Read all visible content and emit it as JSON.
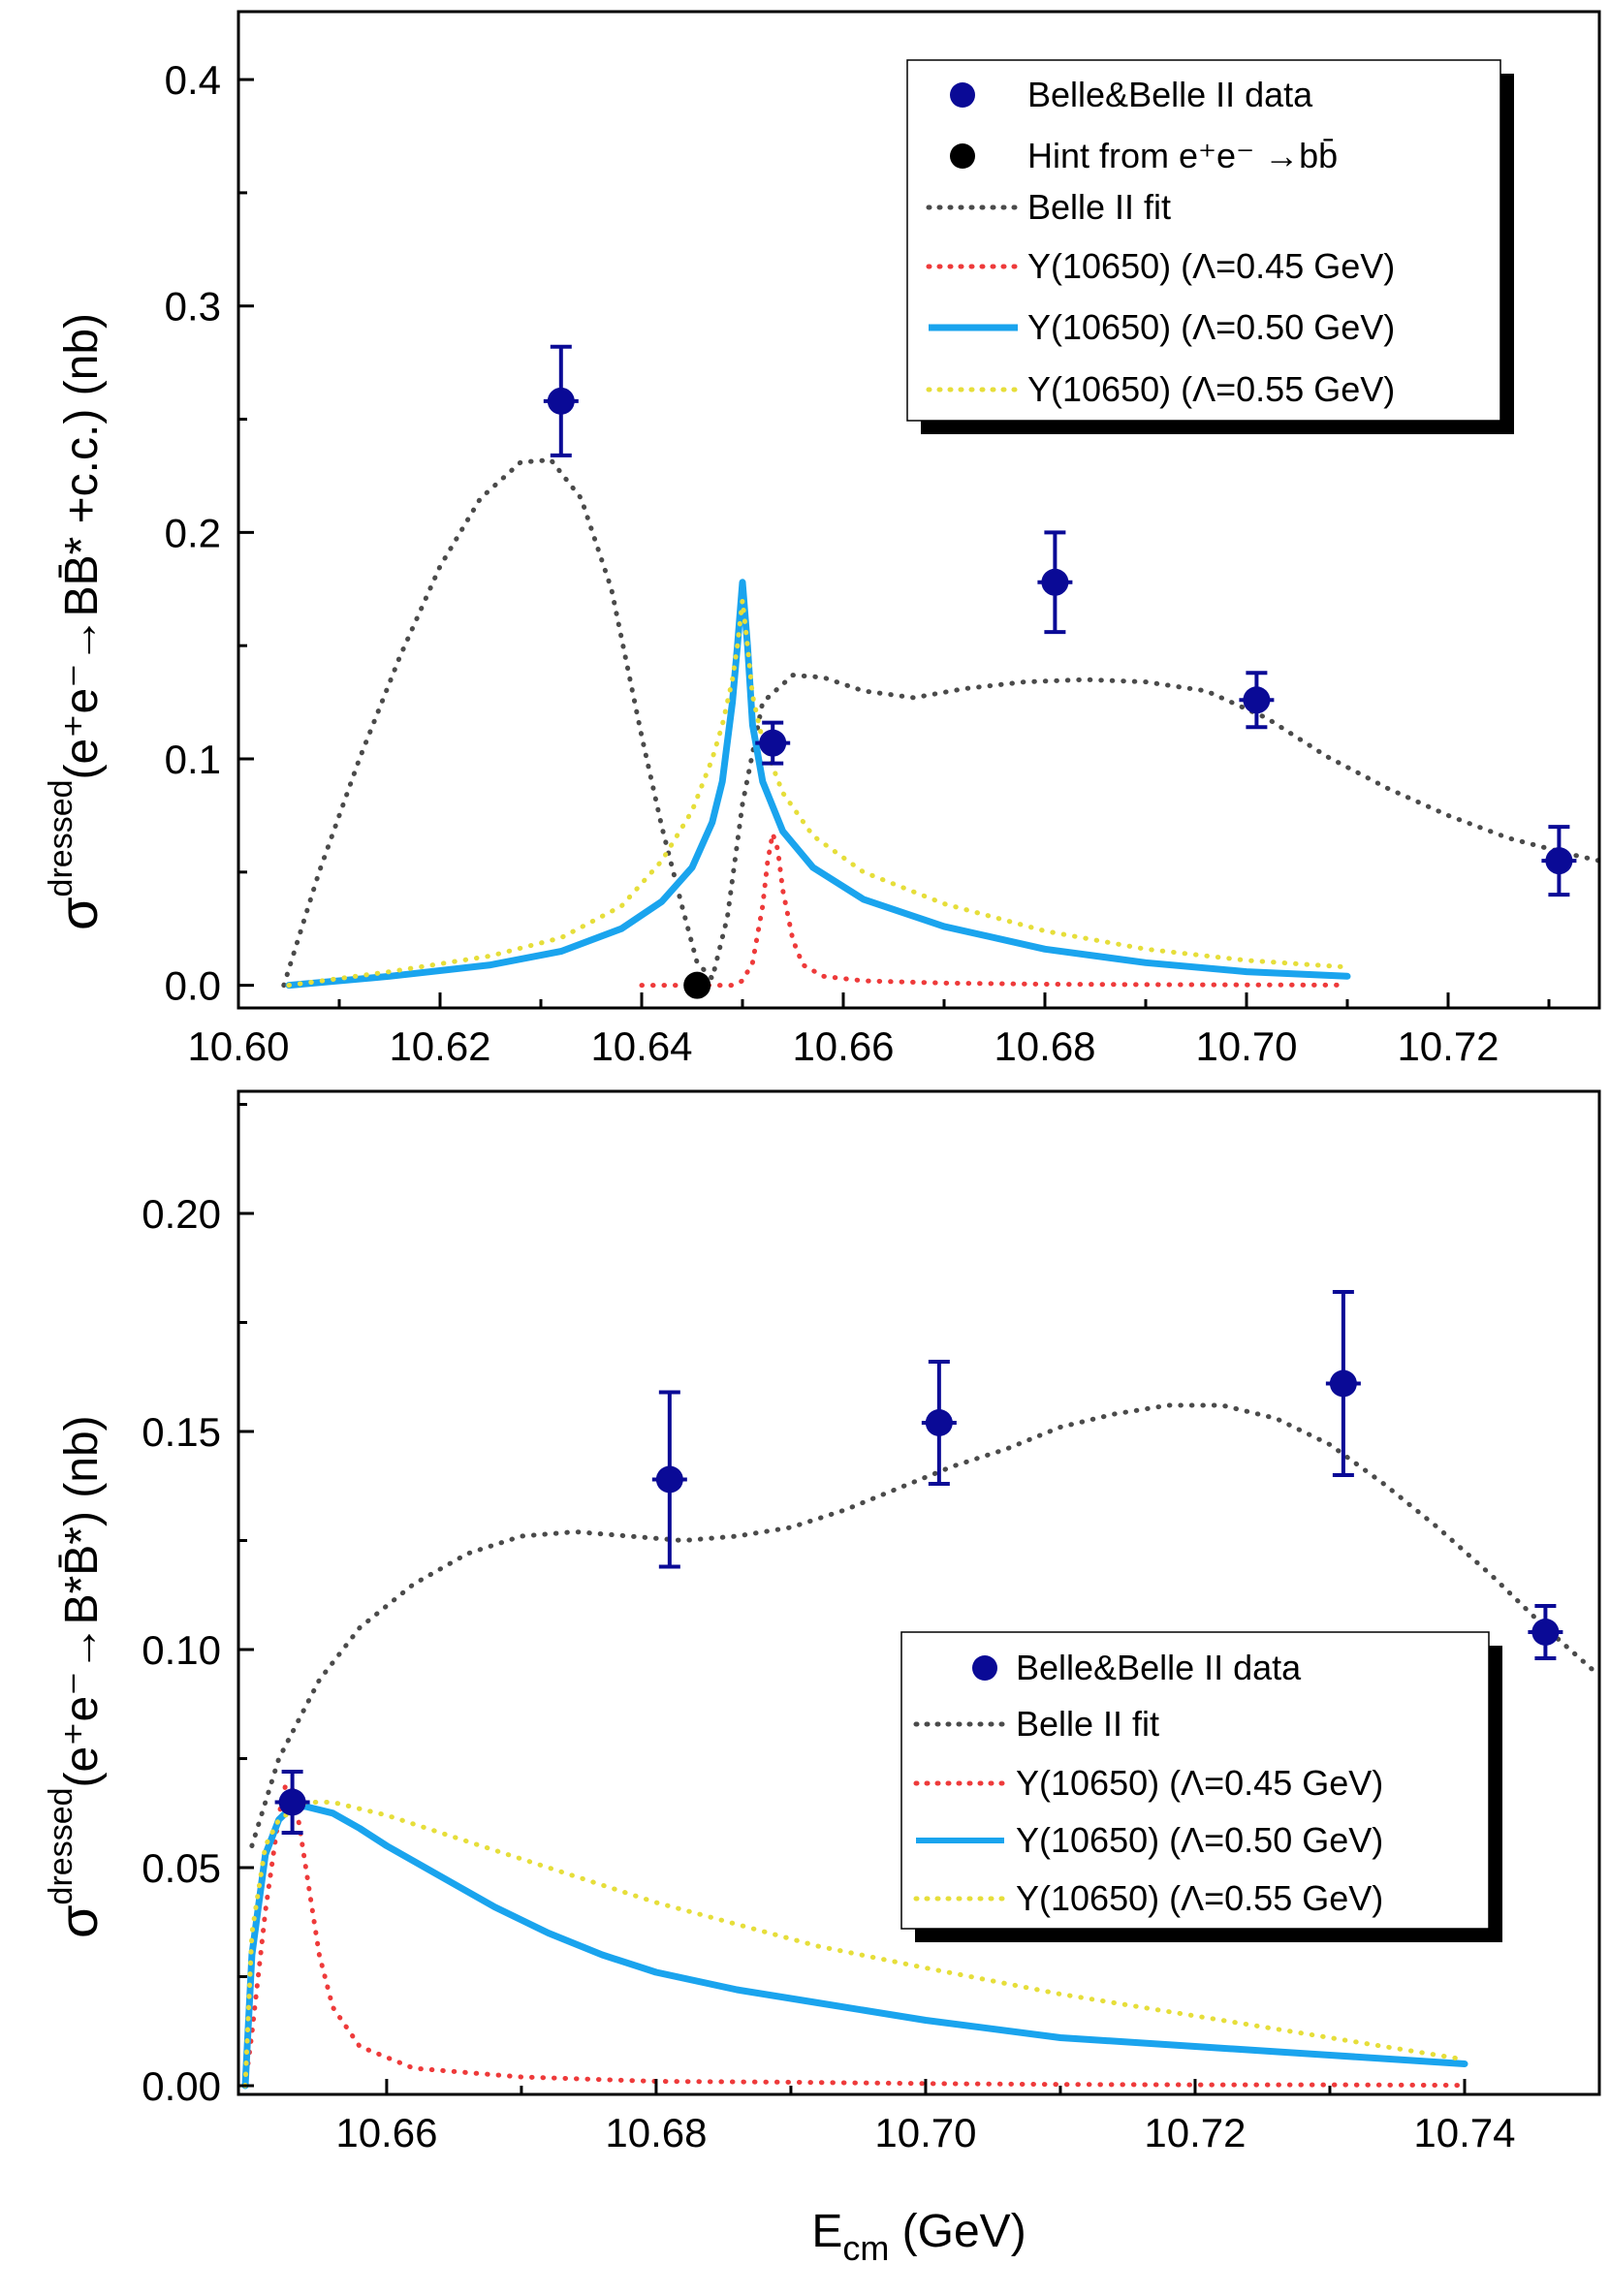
{
  "chart_data": [
    {
      "type": "line",
      "panel": "top",
      "title": "",
      "xlabel": "",
      "ylabel_parts": {
        "sigma": "σ",
        "sup": "dressed",
        "main": "(e⁺e⁻→BB̄* +c.c.) (nb)"
      },
      "xlim": [
        10.6,
        10.735
      ],
      "ylim": [
        -0.01,
        0.43
      ],
      "x_ticks": [
        {
          "value": 10.6,
          "label": "10.60"
        },
        {
          "value": 10.62,
          "label": "10.62"
        },
        {
          "value": 10.64,
          "label": "10.64"
        },
        {
          "value": 10.66,
          "label": "10.66"
        },
        {
          "value": 10.68,
          "label": "10.68"
        },
        {
          "value": 10.7,
          "label": "10.70"
        },
        {
          "value": 10.72,
          "label": "10.72"
        }
      ],
      "y_ticks": [
        {
          "value": 0.0,
          "label": "0.0"
        },
        {
          "value": 0.1,
          "label": "0.1"
        },
        {
          "value": 0.2,
          "label": "0.2"
        },
        {
          "value": 0.3,
          "label": "0.3"
        },
        {
          "value": 0.4,
          "label": "0.4"
        }
      ],
      "legend_position": "top-right",
      "series": [
        {
          "name": "Belle&Belle II data",
          "kind": "points",
          "color": "#0a0a96",
          "x": [
            10.632,
            10.653,
            10.681,
            10.701,
            10.731
          ],
          "y": [
            0.258,
            0.107,
            0.178,
            0.126,
            0.055
          ],
          "yerr": [
            0.024,
            0.009,
            0.022,
            0.012,
            0.015
          ]
        },
        {
          "name": "Hint from e⁺e⁻ →bb̄",
          "kind": "points",
          "color": "#000000",
          "x": [
            10.6455
          ],
          "y": [
            0.0
          ]
        },
        {
          "name": "Belle II fit",
          "kind": "dotted",
          "color": "#4a4a4a",
          "x": [
            10.6045,
            10.608,
            10.612,
            10.616,
            10.62,
            10.624,
            10.628,
            10.631,
            10.634,
            10.637,
            10.64,
            10.642,
            10.644,
            10.6455,
            10.647,
            10.6485,
            10.65,
            10.652,
            10.655,
            10.658,
            10.662,
            10.667,
            10.672,
            10.678,
            10.684,
            10.69,
            10.696,
            10.702,
            10.708,
            10.714,
            10.72,
            10.726,
            10.732,
            10.735
          ],
          "y": [
            0.0,
            0.05,
            0.1,
            0.145,
            0.185,
            0.215,
            0.231,
            0.232,
            0.215,
            0.175,
            0.11,
            0.07,
            0.035,
            0.01,
            0.003,
            0.03,
            0.08,
            0.125,
            0.137,
            0.136,
            0.13,
            0.127,
            0.131,
            0.134,
            0.135,
            0.134,
            0.13,
            0.118,
            0.101,
            0.087,
            0.075,
            0.065,
            0.058,
            0.055
          ]
        },
        {
          "name": "Y(10650) (Λ=0.45 GeV)",
          "kind": "dotted",
          "color": "#ee3a3a",
          "x": [
            10.64,
            10.645,
            10.649,
            10.65,
            10.651,
            10.652,
            10.6525,
            10.653,
            10.6535,
            10.654,
            10.655,
            10.656,
            10.658,
            10.662,
            10.67,
            10.68,
            10.69,
            10.7,
            10.71
          ],
          "y": [
            0.0,
            0.0,
            0.0,
            0.002,
            0.01,
            0.035,
            0.055,
            0.067,
            0.06,
            0.042,
            0.02,
            0.009,
            0.004,
            0.002,
            0.001,
            0.0005,
            0.0003,
            0.0002,
            0.0001
          ]
        },
        {
          "name": "Y(10650) (Λ=0.50 GeV)",
          "kind": "solid",
          "color": "#1aa4ee",
          "x": [
            10.605,
            10.615,
            10.625,
            10.632,
            10.638,
            10.642,
            10.645,
            10.647,
            10.648,
            10.649,
            10.6495,
            10.65,
            10.6505,
            10.651,
            10.652,
            10.654,
            10.657,
            10.662,
            10.67,
            10.68,
            10.69,
            10.7,
            10.71
          ],
          "y": [
            0.0,
            0.004,
            0.009,
            0.015,
            0.025,
            0.037,
            0.052,
            0.072,
            0.09,
            0.125,
            0.15,
            0.178,
            0.15,
            0.115,
            0.09,
            0.068,
            0.052,
            0.038,
            0.026,
            0.016,
            0.01,
            0.006,
            0.004
          ]
        },
        {
          "name": "Y(10650) (Λ=0.55 GeV)",
          "kind": "dotted",
          "color": "#e6de3a",
          "x": [
            10.605,
            10.615,
            10.625,
            10.632,
            10.638,
            10.642,
            10.645,
            10.647,
            10.648,
            10.649,
            10.6495,
            10.65,
            10.6505,
            10.651,
            10.652,
            10.654,
            10.657,
            10.662,
            10.67,
            10.68,
            10.69,
            10.7,
            10.71
          ],
          "y": [
            0.0,
            0.006,
            0.013,
            0.021,
            0.035,
            0.055,
            0.077,
            0.1,
            0.115,
            0.135,
            0.15,
            0.17,
            0.15,
            0.128,
            0.108,
            0.085,
            0.066,
            0.05,
            0.036,
            0.024,
            0.016,
            0.011,
            0.008
          ]
        }
      ]
    },
    {
      "type": "line",
      "panel": "bottom",
      "title": "",
      "xlabel": "E_cm (GeV)",
      "xlabel_parts": {
        "main": "E",
        "sub": "cm",
        "rest": " (GeV)"
      },
      "ylabel_parts": {
        "sigma": "σ",
        "sup": "dressed",
        "main": "(e⁺e⁻→B*B̄*) (nb)"
      },
      "xlim": [
        10.649,
        10.75
      ],
      "ylim": [
        -0.002,
        0.228
      ],
      "x_ticks": [
        {
          "value": 10.66,
          "label": "10.66"
        },
        {
          "value": 10.68,
          "label": "10.68"
        },
        {
          "value": 10.7,
          "label": "10.70"
        },
        {
          "value": 10.72,
          "label": "10.72"
        },
        {
          "value": 10.74,
          "label": "10.74"
        }
      ],
      "y_ticks": [
        {
          "value": 0.0,
          "label": "0.00"
        },
        {
          "value": 0.05,
          "label": "0.05"
        },
        {
          "value": 0.1,
          "label": "0.10"
        },
        {
          "value": 0.15,
          "label": "0.15"
        },
        {
          "value": 0.2,
          "label": "0.20"
        }
      ],
      "legend_position": "bottom-right",
      "series": [
        {
          "name": "Belle&Belle II data",
          "kind": "points",
          "color": "#0a0a96",
          "x": [
            10.653,
            10.681,
            10.701,
            10.731,
            10.746
          ],
          "y": [
            0.065,
            0.139,
            0.152,
            0.161,
            0.104
          ],
          "yerr": [
            0.007,
            0.02,
            0.014,
            0.021,
            0.006
          ]
        },
        {
          "name": "Belle II fit",
          "kind": "dotted",
          "color": "#4a4a4a",
          "x": [
            10.65,
            10.652,
            10.655,
            10.658,
            10.662,
            10.666,
            10.67,
            10.674,
            10.678,
            10.682,
            10.686,
            10.69,
            10.694,
            10.698,
            10.702,
            10.706,
            10.71,
            10.714,
            10.718,
            10.722,
            10.726,
            10.73,
            10.734,
            10.738,
            10.742,
            10.746,
            10.75
          ],
          "y": [
            0.055,
            0.075,
            0.093,
            0.105,
            0.115,
            0.122,
            0.126,
            0.127,
            0.126,
            0.125,
            0.126,
            0.128,
            0.132,
            0.137,
            0.142,
            0.146,
            0.151,
            0.154,
            0.156,
            0.156,
            0.153,
            0.147,
            0.138,
            0.128,
            0.117,
            0.105,
            0.094
          ]
        },
        {
          "name": "Y(10650) (Λ=0.45 GeV)",
          "kind": "dotted",
          "color": "#ee3a3a",
          "x": [
            10.6495,
            10.65,
            10.651,
            10.652,
            10.6525,
            10.653,
            10.6535,
            10.654,
            10.655,
            10.656,
            10.658,
            10.662,
            10.67,
            10.68,
            10.69,
            10.7,
            10.71,
            10.72,
            10.73,
            10.74
          ],
          "y": [
            0.0,
            0.012,
            0.04,
            0.062,
            0.069,
            0.068,
            0.06,
            0.05,
            0.03,
            0.018,
            0.009,
            0.004,
            0.002,
            0.001,
            0.0008,
            0.0005,
            0.0003,
            0.0002,
            0.0002,
            0.0001
          ]
        },
        {
          "name": "Y(10650) (Λ=0.50 GeV)",
          "kind": "solid",
          "color": "#1aa4ee",
          "x": [
            10.6495,
            10.65,
            10.651,
            10.652,
            10.653,
            10.654,
            10.656,
            10.658,
            10.66,
            10.664,
            10.668,
            10.672,
            10.676,
            10.68,
            10.686,
            10.692,
            10.7,
            10.71,
            10.72,
            10.73,
            10.74
          ],
          "y": [
            0.0,
            0.03,
            0.053,
            0.061,
            0.064,
            0.064,
            0.0625,
            0.059,
            0.055,
            0.048,
            0.041,
            0.035,
            0.03,
            0.026,
            0.022,
            0.019,
            0.015,
            0.011,
            0.009,
            0.007,
            0.005
          ]
        },
        {
          "name": "Y(10650) (Λ=0.55 GeV)",
          "kind": "dotted",
          "color": "#e6de3a",
          "x": [
            10.6495,
            10.65,
            10.651,
            10.652,
            10.654,
            10.656,
            10.658,
            10.66,
            10.664,
            10.668,
            10.672,
            10.676,
            10.68,
            10.686,
            10.692,
            10.7,
            10.71,
            10.72,
            10.73,
            10.74
          ],
          "y": [
            0.0,
            0.035,
            0.055,
            0.061,
            0.065,
            0.065,
            0.0635,
            0.062,
            0.058,
            0.054,
            0.05,
            0.046,
            0.042,
            0.037,
            0.032,
            0.027,
            0.021,
            0.016,
            0.011,
            0.006
          ]
        }
      ]
    }
  ]
}
